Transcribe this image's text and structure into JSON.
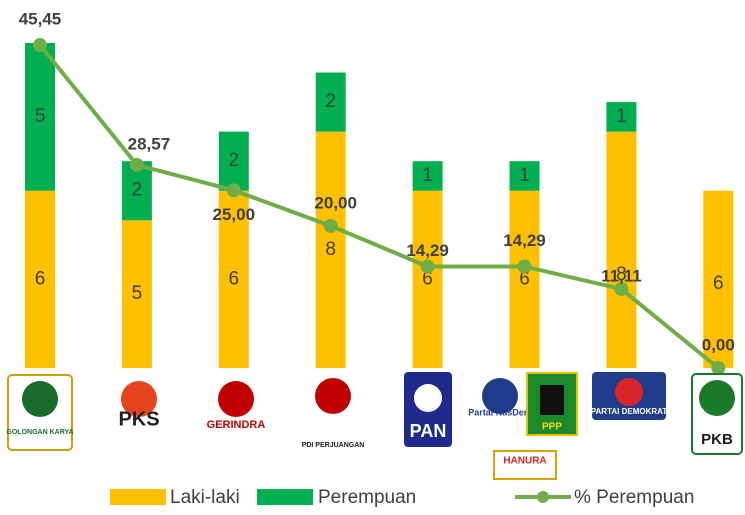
{
  "chart_data": {
    "type": "bar_line",
    "categories": [
      "GOLONGAN KARYA",
      "PKS",
      "GERINDRA",
      "PDI PERJUANGAN",
      "PAN",
      "Partai NasDem",
      "PARTAI DEMOKRAT",
      "PKB"
    ],
    "extra_logos": [
      "PPP",
      "HANURA"
    ],
    "series": [
      {
        "name": "Laki-laki",
        "color": "#FFC000",
        "values": [
          6,
          5,
          6,
          8,
          6,
          6,
          8,
          6
        ]
      },
      {
        "name": "Perempuan",
        "color": "#00B050",
        "values": [
          5,
          2,
          2,
          2,
          1,
          1,
          1,
          null
        ]
      },
      {
        "name": "% Perempuan",
        "color": "#70AD47",
        "axis": "y2",
        "values": [
          45.45,
          28.57,
          25.0,
          20.0,
          14.29,
          14.29,
          11.11,
          0.0
        ],
        "value_labels": [
          "45,45",
          "28,57",
          "25,00",
          "20,00",
          "14,29",
          "14,29",
          "11,11",
          "0,00"
        ]
      }
    ],
    "ylim": [
      0,
      11
    ],
    "y2lim": [
      0,
      45.45
    ]
  }
}
